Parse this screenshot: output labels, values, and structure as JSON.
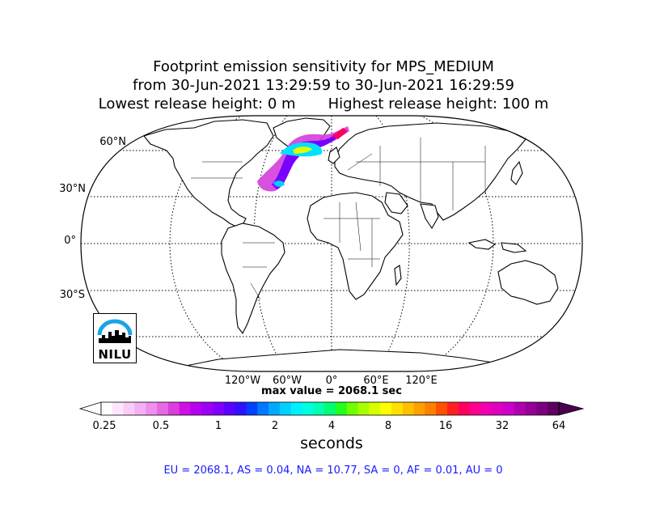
{
  "title": {
    "line1": "Footprint emission sensitivity for MPS_MEDIUM",
    "line2": "from 30-Jun-2021 13:29:59 to 30-Jun-2021 16:29:59",
    "line3": "Lowest release height: 0 m       Highest release height: 100 m"
  },
  "map": {
    "projection": "Robinson",
    "lat_labels": [
      "60°N",
      "30°N",
      "0°",
      "30°S"
    ],
    "lon_labels": [
      "120°W",
      "60°W",
      "0°",
      "60°E",
      "120°E"
    ],
    "plume_region": "North Atlantic / Greenland",
    "colors": {
      "coastline": "#000000",
      "graticule": "#000000"
    }
  },
  "max_value": "max value = 2068.1 sec",
  "colorbar": {
    "label": "seconds",
    "tick_labels": [
      "0.25",
      "0.5",
      "1",
      "2",
      "4",
      "8",
      "16",
      "32",
      "64"
    ],
    "scale": "log2",
    "extend": "both",
    "colors": [
      "#ffffff",
      "#fde6fd",
      "#f9ccf9",
      "#f4b0f4",
      "#ee90ee",
      "#e66ae6",
      "#dc3ddc",
      "#cf10e5",
      "#b700f0",
      "#9f00f5",
      "#7f00ff",
      "#5c00ff",
      "#2f10ff",
      "#0040ff",
      "#0078ff",
      "#00a8ff",
      "#00d0ff",
      "#00f0ff",
      "#00ffe0",
      "#00ffb0",
      "#00ff70",
      "#20ff20",
      "#70ff00",
      "#a8ff00",
      "#d8ff00",
      "#ffff00",
      "#ffe000",
      "#ffc000",
      "#ffa000",
      "#ff8000",
      "#ff5000",
      "#ff2020",
      "#ff0060",
      "#ff0090",
      "#f000b0",
      "#e000c0",
      "#cc00cc",
      "#b000b0",
      "#960096",
      "#7a0080",
      "#5e0060"
    ]
  },
  "stats": {
    "text": "EU = 2068.1,  AS = 0.04,  NA = 10.77,  SA = 0,  AF = 0.01,  AU = 0"
  },
  "logo": {
    "text": "NILU",
    "colors": {
      "arc": "#1aa3e8",
      "skyline": "#000000"
    }
  }
}
